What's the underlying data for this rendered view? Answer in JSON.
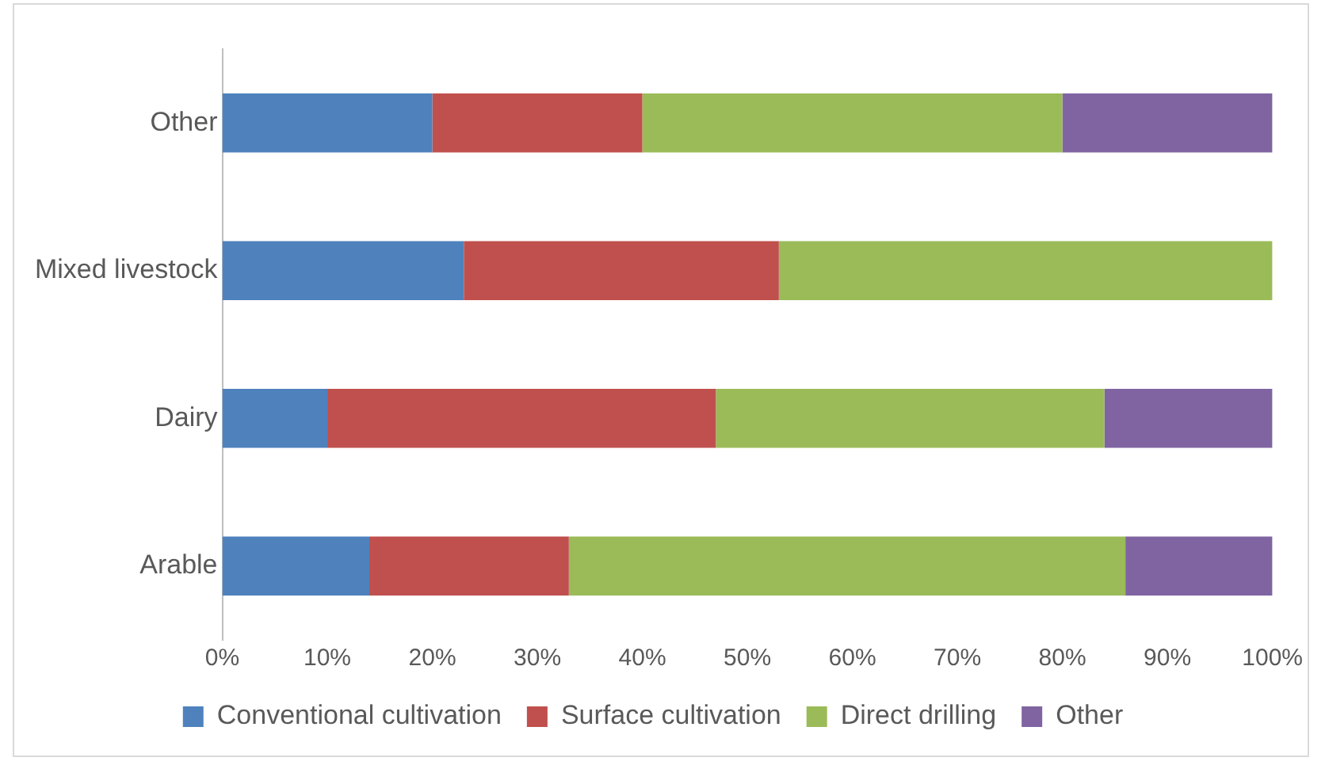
{
  "chart_data": {
    "type": "bar",
    "orientation": "horizontal",
    "stacked": true,
    "categories": [
      "Other",
      "Mixed livestock",
      "Dairy",
      "Arable"
    ],
    "series": [
      {
        "name": "Conventional cultivation",
        "color": "#4f81bd",
        "values": [
          20,
          23,
          10,
          14
        ]
      },
      {
        "name": "Surface cultivation",
        "color": "#c0504d",
        "values": [
          20,
          30,
          37,
          19
        ]
      },
      {
        "name": "Direct drilling",
        "color": "#9bbb59",
        "values": [
          40,
          47,
          37,
          53
        ]
      },
      {
        "name": "Other",
        "color": "#8064a2",
        "values": [
          20,
          0,
          16,
          14
        ]
      }
    ],
    "xlim": [
      0,
      100
    ],
    "xticks": [
      {
        "value": 0,
        "label": "0%"
      },
      {
        "value": 10,
        "label": "10%"
      },
      {
        "value": 20,
        "label": "20%"
      },
      {
        "value": 30,
        "label": "30%"
      },
      {
        "value": 40,
        "label": "40%"
      },
      {
        "value": 50,
        "label": "50%"
      },
      {
        "value": 60,
        "label": "60%"
      },
      {
        "value": 70,
        "label": "70%"
      },
      {
        "value": 80,
        "label": "80%"
      },
      {
        "value": 90,
        "label": "90%"
      },
      {
        "value": 100,
        "label": "100%"
      }
    ],
    "grid": false,
    "legend": "bottom"
  }
}
